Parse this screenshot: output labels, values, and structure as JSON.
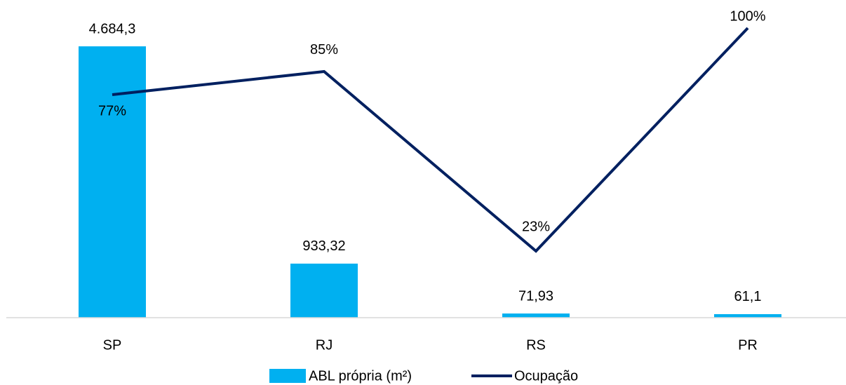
{
  "chart_data": {
    "type": "bar-line",
    "categories": [
      "SP",
      "RJ",
      "RS",
      "PR"
    ],
    "series": [
      {
        "name": "ABL própria (m²)",
        "type": "bar",
        "color": "#00b0f0",
        "values": [
          4684.3,
          933.32,
          71.93,
          61.1
        ],
        "value_labels": [
          "4.684,3",
          "933,32",
          "71,93",
          "61,1"
        ]
      },
      {
        "name": "Ocupação",
        "type": "line",
        "axis": "y2",
        "color": "#002060",
        "values": [
          77,
          85,
          23,
          100
        ],
        "value_labels": [
          "77%",
          "85%",
          "23%",
          "100%"
        ]
      }
    ],
    "ylim": [
      0,
      5000
    ],
    "y2lim": [
      0,
      100
    ],
    "legend": "bottom"
  }
}
